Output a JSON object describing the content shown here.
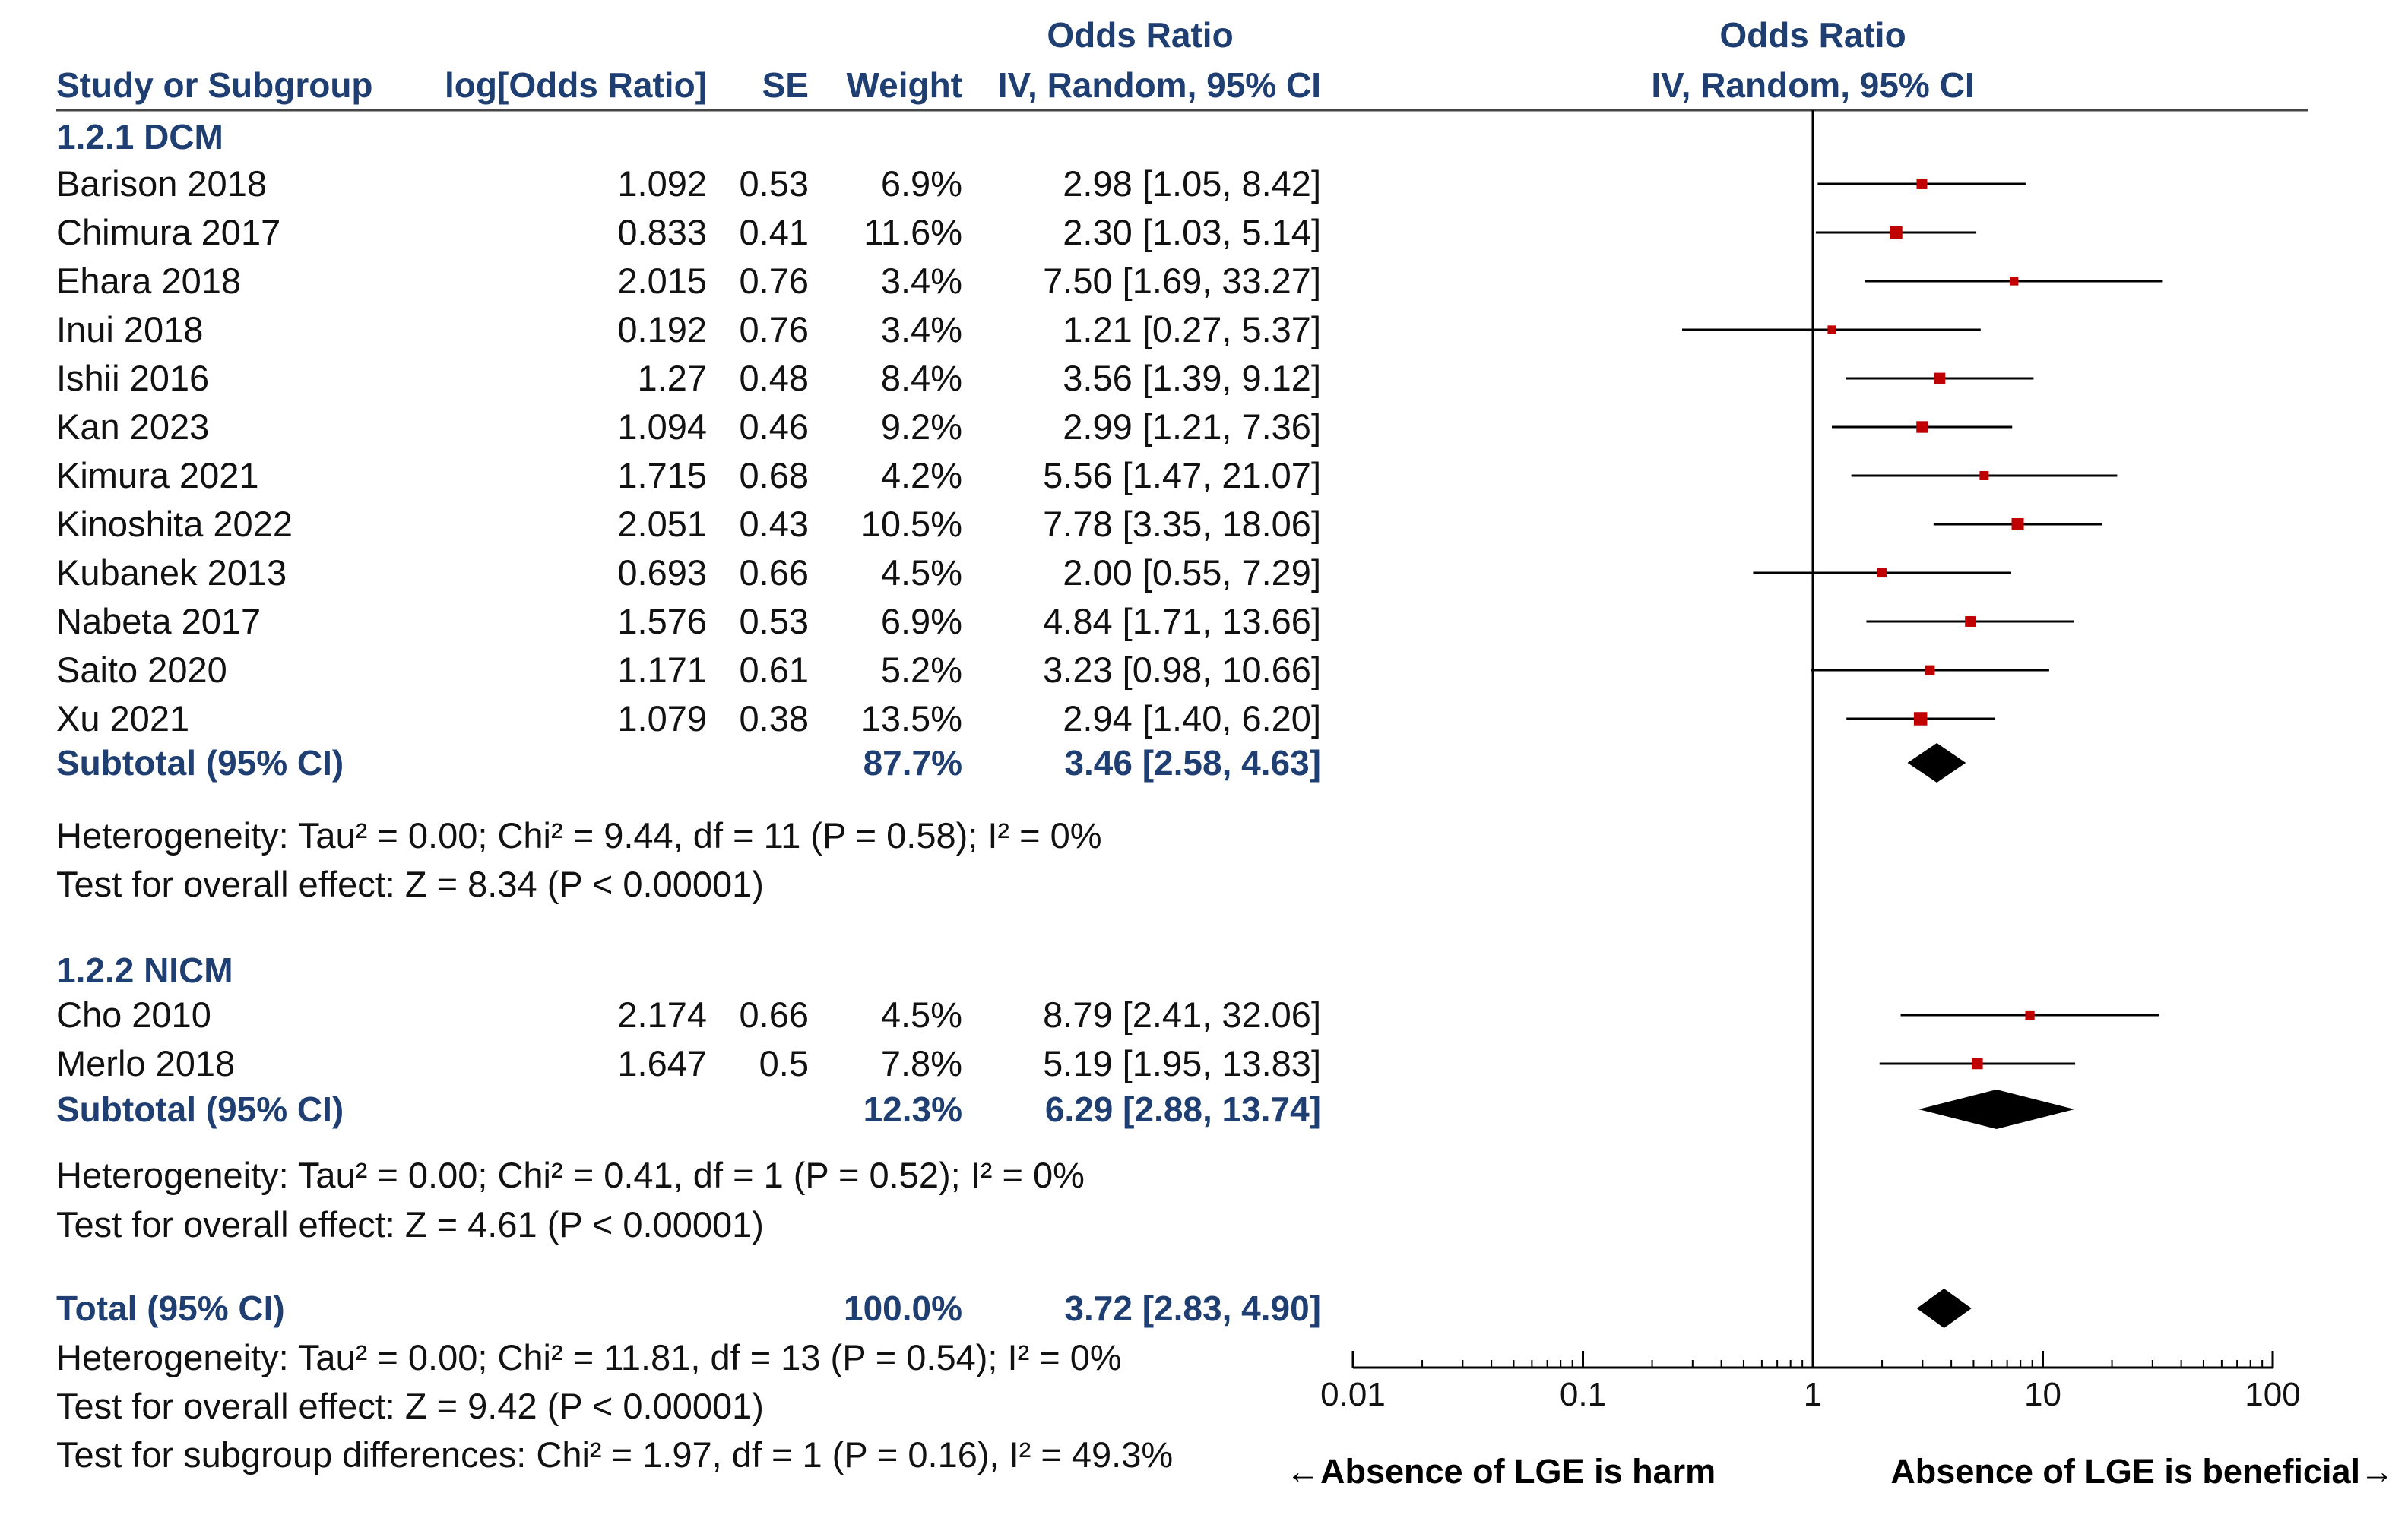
{
  "chart_data": {
    "type": "forest",
    "scale": "log",
    "xlim": [
      0.01,
      100
    ],
    "null_value": 1,
    "x_ticks": [
      "0.01",
      "0.1",
      "1",
      "10",
      "100"
    ],
    "x_tick_values": [
      0.01,
      0.1,
      1,
      10,
      100
    ],
    "header": {
      "col_study": "Study or Subgroup",
      "col_logor": "log[Odds Ratio]",
      "col_se": "SE",
      "col_weight": "Weight",
      "col_ci_title": "Odds Ratio",
      "col_ci_sub": "IV, Random, 95% CI",
      "plot_title": "Odds Ratio",
      "plot_sub": "IV, Random, 95% CI"
    },
    "subgroups": [
      {
        "label": "1.2.1 DCM",
        "studies": [
          {
            "name": "Barison 2018",
            "logor": "1.092",
            "se": "0.53",
            "weight": "6.9%",
            "ci": "2.98 [1.05, 8.42]",
            "or": 2.98,
            "lo": 1.05,
            "hi": 8.42,
            "w": 6.9
          },
          {
            "name": "Chimura 2017",
            "logor": "0.833",
            "se": "0.41",
            "weight": "11.6%",
            "ci": "2.30 [1.03, 5.14]",
            "or": 2.3,
            "lo": 1.03,
            "hi": 5.14,
            "w": 11.6
          },
          {
            "name": "Ehara 2018",
            "logor": "2.015",
            "se": "0.76",
            "weight": "3.4%",
            "ci": "7.50 [1.69, 33.27]",
            "or": 7.5,
            "lo": 1.69,
            "hi": 33.27,
            "w": 3.4
          },
          {
            "name": "Inui 2018",
            "logor": "0.192",
            "se": "0.76",
            "weight": "3.4%",
            "ci": "1.21 [0.27, 5.37]",
            "or": 1.21,
            "lo": 0.27,
            "hi": 5.37,
            "w": 3.4
          },
          {
            "name": "Ishii 2016",
            "logor": "1.27",
            "se": "0.48",
            "weight": "8.4%",
            "ci": "3.56 [1.39, 9.12]",
            "or": 3.56,
            "lo": 1.39,
            "hi": 9.12,
            "w": 8.4
          },
          {
            "name": "Kan 2023",
            "logor": "1.094",
            "se": "0.46",
            "weight": "9.2%",
            "ci": "2.99 [1.21, 7.36]",
            "or": 2.99,
            "lo": 1.21,
            "hi": 7.36,
            "w": 9.2
          },
          {
            "name": "Kimura 2021",
            "logor": "1.715",
            "se": "0.68",
            "weight": "4.2%",
            "ci": "5.56 [1.47, 21.07]",
            "or": 5.56,
            "lo": 1.47,
            "hi": 21.07,
            "w": 4.2
          },
          {
            "name": "Kinoshita 2022",
            "logor": "2.051",
            "se": "0.43",
            "weight": "10.5%",
            "ci": "7.78 [3.35, 18.06]",
            "or": 7.78,
            "lo": 3.35,
            "hi": 18.06,
            "w": 10.5
          },
          {
            "name": "Kubanek 2013",
            "logor": "0.693",
            "se": "0.66",
            "weight": "4.5%",
            "ci": "2.00 [0.55, 7.29]",
            "or": 2.0,
            "lo": 0.55,
            "hi": 7.29,
            "w": 4.5
          },
          {
            "name": "Nabeta 2017",
            "logor": "1.576",
            "se": "0.53",
            "weight": "6.9%",
            "ci": "4.84 [1.71, 13.66]",
            "or": 4.84,
            "lo": 1.71,
            "hi": 13.66,
            "w": 6.9
          },
          {
            "name": "Saito 2020",
            "logor": "1.171",
            "se": "0.61",
            "weight": "5.2%",
            "ci": "3.23 [0.98, 10.66]",
            "or": 3.23,
            "lo": 0.98,
            "hi": 10.66,
            "w": 5.2
          },
          {
            "name": "Xu 2021",
            "logor": "1.079",
            "se": "0.38",
            "weight": "13.5%",
            "ci": "2.94 [1.40, 6.20]",
            "or": 2.94,
            "lo": 1.4,
            "hi": 6.2,
            "w": 13.5
          }
        ],
        "subtotal": {
          "label": "Subtotal (95% CI)",
          "weight": "87.7%",
          "ci": "3.46 [2.58, 4.63]",
          "or": 3.46,
          "lo": 2.58,
          "hi": 4.63
        },
        "heterogeneity": "Heterogeneity: Tau² = 0.00; Chi² = 9.44, df = 11 (P = 0.58); I² = 0%",
        "overall": "Test for overall effect: Z = 8.34 (P < 0.00001)"
      },
      {
        "label": "1.2.2 NICM",
        "studies": [
          {
            "name": "Cho 2010",
            "logor": "2.174",
            "se": "0.66",
            "weight": "4.5%",
            "ci": "8.79 [2.41, 32.06]",
            "or": 8.79,
            "lo": 2.41,
            "hi": 32.06,
            "w": 4.5
          },
          {
            "name": "Merlo 2018",
            "logor": "1.647",
            "se": "0.5",
            "weight": "7.8%",
            "ci": "5.19 [1.95, 13.83]",
            "or": 5.19,
            "lo": 1.95,
            "hi": 13.83,
            "w": 7.8
          }
        ],
        "subtotal": {
          "label": "Subtotal (95% CI)",
          "weight": "12.3%",
          "ci": "6.29 [2.88, 13.74]",
          "or": 6.29,
          "lo": 2.88,
          "hi": 13.74
        },
        "heterogeneity": "Heterogeneity: Tau² = 0.00; Chi² = 0.41, df = 1 (P = 0.52); I² = 0%",
        "overall": "Test for overall effect: Z = 4.61 (P < 0.00001)"
      }
    ],
    "total": {
      "label": "Total (95% CI)",
      "weight": "100.0%",
      "ci": "3.72 [2.83, 4.90]",
      "or": 3.72,
      "lo": 2.83,
      "hi": 4.9,
      "heterogeneity": "Heterogeneity: Tau² = 0.00; Chi² = 11.81, df = 13 (P = 0.54); I² = 0%",
      "overall": "Test for overall effect: Z = 9.42 (P < 0.00001)",
      "subgroup_diff": "Test for subgroup differences: Chi² = 1.97, df = 1 (P = 0.16), I² = 49.3%"
    },
    "favours_left": "←Absence of LGE is harm",
    "favours_right": "Absence of LGE is beneficial→",
    "colors": {
      "header": "#1f3f73",
      "square": "#c00000",
      "line": "#000000",
      "diamond": "#000000"
    }
  }
}
